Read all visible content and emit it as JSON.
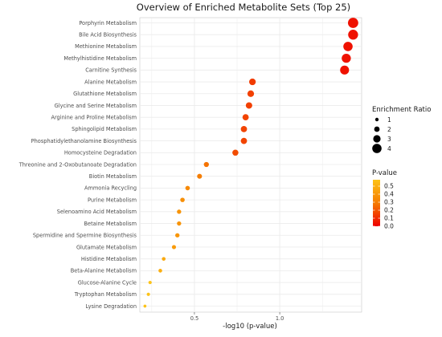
{
  "chart_data": {
    "type": "scatter",
    "title": "Overview of Enriched Metabolite Sets (Top 25)",
    "xlabel": "-log10 (p-value)",
    "ylabel": "",
    "xlim": [
      0.18,
      1.48
    ],
    "xticks": [
      "0.5",
      "1.0"
    ],
    "grid": true,
    "categories": [
      "Porphyrin Metabolism",
      "Bile Acid Biosynthesis",
      "Methionine Metabolism",
      "Methylhistidine Metabolism",
      "Carnitine Synthesis",
      "Alanine Metabolism",
      "Glutathione Metabolism",
      "Glycine and Serine Metabolism",
      "Arginine and Proline Metabolism",
      "Sphingolipid Metabolism",
      "Phosphatidylethanolamine Biosynthesis",
      "Homocysteine Degradation",
      "Threonine and 2-Oxobutanoate Degradation",
      "Biotin Metabolism",
      "Ammonia Recycling",
      "Purine Metabolism",
      "Selenoamino Acid Metabolism",
      "Betaine Metabolism",
      "Spermidine and Spermine Biosynthesis",
      "Glutamate Metabolism",
      "Histidine Metabolism",
      "Beta-Alanine Metabolism",
      "Glucose-Alanine Cycle",
      "Tryptophan Metabolism",
      "Lysine Degradation"
    ],
    "x": [
      1.43,
      1.43,
      1.4,
      1.39,
      1.38,
      0.84,
      0.83,
      0.82,
      0.8,
      0.79,
      0.79,
      0.74,
      0.57,
      0.53,
      0.46,
      0.43,
      0.41,
      0.41,
      0.4,
      0.38,
      0.32,
      0.3,
      0.24,
      0.23,
      0.21
    ],
    "enrichment_ratio": [
      4.5,
      4.3,
      4.0,
      3.9,
      3.8,
      2.6,
      2.6,
      2.5,
      2.4,
      2.4,
      2.4,
      2.3,
      1.8,
      1.7,
      1.5,
      1.5,
      1.4,
      1.4,
      1.4,
      1.3,
      1.1,
      1.1,
      0.9,
      0.9,
      0.7
    ],
    "p_value": [
      0.04,
      0.04,
      0.04,
      0.04,
      0.04,
      0.14,
      0.15,
      0.15,
      0.16,
      0.16,
      0.16,
      0.18,
      0.27,
      0.3,
      0.35,
      0.37,
      0.39,
      0.39,
      0.4,
      0.42,
      0.48,
      0.5,
      0.58,
      0.59,
      0.62
    ],
    "size_legend": {
      "title": "Enrichment Ratio",
      "values": [
        1,
        2,
        3,
        4
      ],
      "labels": [
        "1",
        "2",
        "3",
        "4"
      ]
    },
    "color_legend": {
      "title": "P-value",
      "labels": [
        "0.5",
        "0.4",
        "0.3",
        "0.2",
        "0.1",
        "0.0"
      ],
      "values": [
        0.5,
        0.4,
        0.3,
        0.2,
        0.1,
        0.0
      ],
      "low_color": "#ee0000",
      "mid_color": "#f57b00",
      "high_color": "#fdc318",
      "max": 0.58
    },
    "panel_background": "#ffffff",
    "grid_color": "#ebebeb"
  }
}
